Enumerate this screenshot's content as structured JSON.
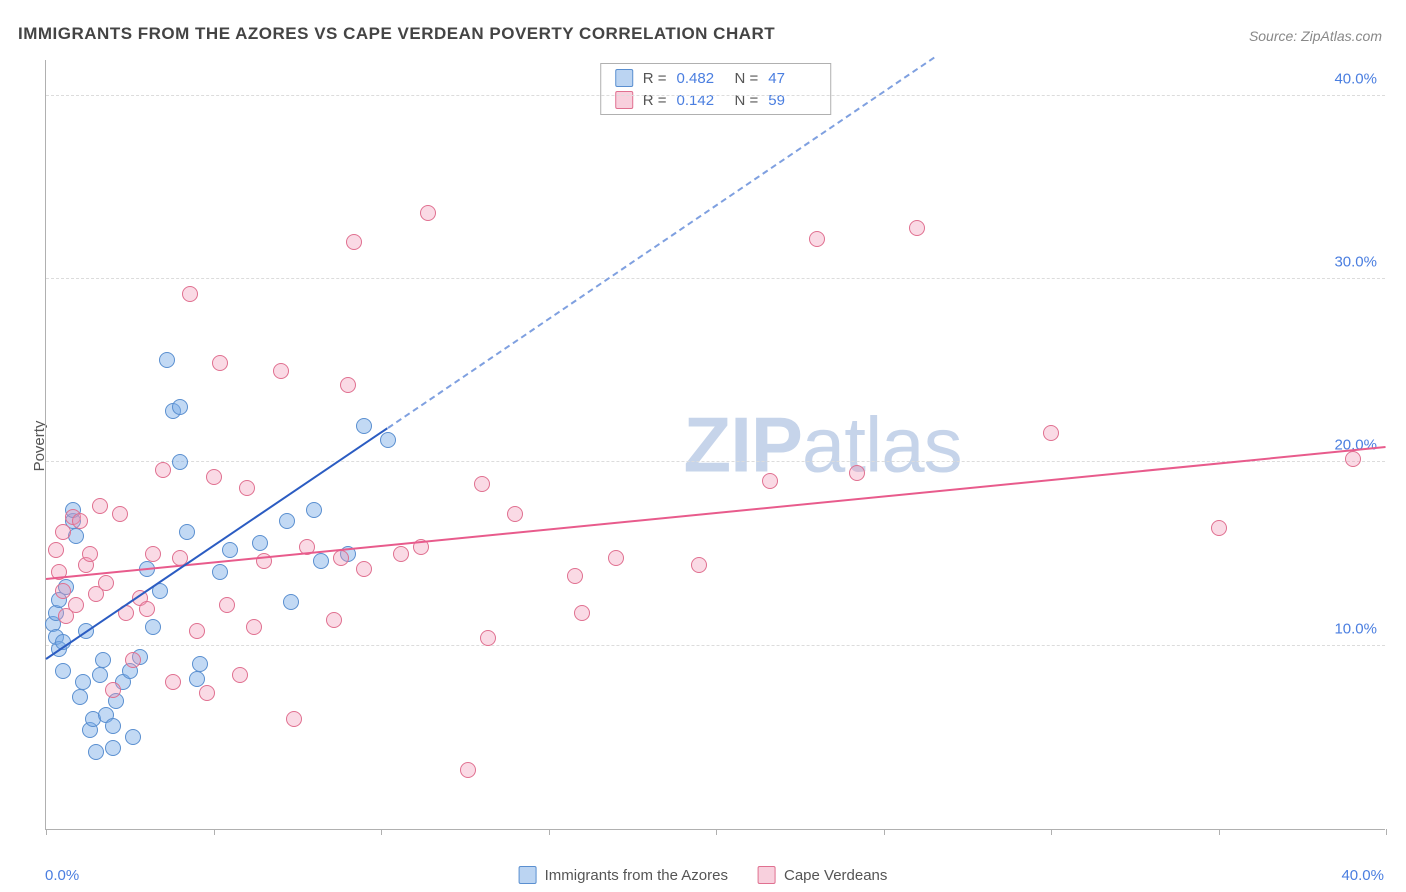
{
  "title": "IMMIGRANTS FROM THE AZORES VS CAPE VERDEAN POVERTY CORRELATION CHART",
  "source": "Source: ZipAtlas.com",
  "watermark_bold": "ZIP",
  "watermark_light": "atlas",
  "axis_y_title": "Poverty",
  "chart": {
    "type": "scatter",
    "xlim": [
      0,
      40
    ],
    "ylim": [
      0,
      42
    ],
    "x_ticks": [
      0,
      5,
      10,
      15,
      20,
      25,
      30,
      35,
      40
    ],
    "y_gridlines": [
      10,
      20,
      30,
      40
    ],
    "x_labels": [
      {
        "val": 0,
        "text": "0.0%"
      },
      {
        "val": 40,
        "text": "40.0%"
      }
    ],
    "y_labels": [
      {
        "val": 10,
        "text": "10.0%"
      },
      {
        "val": 20,
        "text": "20.0%"
      },
      {
        "val": 30,
        "text": "30.0%"
      },
      {
        "val": 40,
        "text": "40.0%"
      }
    ],
    "background_color": "#ffffff",
    "grid_color": "#dcdcdc",
    "axis_color": "#b0b0b0",
    "label_color": "#4a7ee0",
    "label_fontsize": 15,
    "title_fontsize": 17,
    "marker_radius": 8,
    "series": [
      {
        "name": "Immigrants from the Azores",
        "color_fill": "rgba(120,170,230,0.45)",
        "color_stroke": "#5a8fd0",
        "R": "0.482",
        "N": "47",
        "trend": {
          "x1": 0,
          "y1": 9.2,
          "x2": 10.2,
          "y2": 21.8,
          "color": "#2b5cc2",
          "width": 2.5,
          "style": "solid"
        },
        "trend_ext": {
          "x1": 10.2,
          "y1": 21.8,
          "x2": 26.5,
          "y2": 42,
          "color": "#7fa0e0",
          "width": 2,
          "style": "dashed"
        },
        "points": [
          [
            0.2,
            11.2
          ],
          [
            0.3,
            10.5
          ],
          [
            0.3,
            11.8
          ],
          [
            0.4,
            9.8
          ],
          [
            0.4,
            12.5
          ],
          [
            0.5,
            10.2
          ],
          [
            0.5,
            8.6
          ],
          [
            0.6,
            13.2
          ],
          [
            0.8,
            16.8
          ],
          [
            0.8,
            17.4
          ],
          [
            0.9,
            16.0
          ],
          [
            1.0,
            7.2
          ],
          [
            1.1,
            8.0
          ],
          [
            1.2,
            10.8
          ],
          [
            1.3,
            5.4
          ],
          [
            1.4,
            6.0
          ],
          [
            1.5,
            4.2
          ],
          [
            1.6,
            8.4
          ],
          [
            1.7,
            9.2
          ],
          [
            1.8,
            6.2
          ],
          [
            2.0,
            5.6
          ],
          [
            2.0,
            4.4
          ],
          [
            2.1,
            7.0
          ],
          [
            2.3,
            8.0
          ],
          [
            2.5,
            8.6
          ],
          [
            2.6,
            5.0
          ],
          [
            2.8,
            9.4
          ],
          [
            3.0,
            14.2
          ],
          [
            3.2,
            11.0
          ],
          [
            3.4,
            13.0
          ],
          [
            3.6,
            25.6
          ],
          [
            3.8,
            22.8
          ],
          [
            4.0,
            20.0
          ],
          [
            4.0,
            23.0
          ],
          [
            4.2,
            16.2
          ],
          [
            4.5,
            8.2
          ],
          [
            4.6,
            9.0
          ],
          [
            5.2,
            14.0
          ],
          [
            5.5,
            15.2
          ],
          [
            6.4,
            15.6
          ],
          [
            7.2,
            16.8
          ],
          [
            7.3,
            12.4
          ],
          [
            8.2,
            14.6
          ],
          [
            8.0,
            17.4
          ],
          [
            9.0,
            15.0
          ],
          [
            9.5,
            22.0
          ],
          [
            10.2,
            21.2
          ]
        ]
      },
      {
        "name": "Cape Verdeans",
        "color_fill": "rgba(240,150,180,0.35)",
        "color_stroke": "#e07090",
        "R": "0.142",
        "N": "59",
        "trend": {
          "x1": 0,
          "y1": 13.6,
          "x2": 40,
          "y2": 20.8,
          "color": "#e85b8c",
          "width": 2.5,
          "style": "solid"
        },
        "points": [
          [
            0.3,
            15.2
          ],
          [
            0.4,
            14.0
          ],
          [
            0.5,
            13.0
          ],
          [
            0.5,
            16.2
          ],
          [
            0.6,
            11.6
          ],
          [
            0.8,
            17.0
          ],
          [
            0.9,
            12.2
          ],
          [
            1.0,
            16.8
          ],
          [
            1.2,
            14.4
          ],
          [
            1.3,
            15.0
          ],
          [
            1.5,
            12.8
          ],
          [
            1.6,
            17.6
          ],
          [
            1.8,
            13.4
          ],
          [
            2.0,
            7.6
          ],
          [
            2.2,
            17.2
          ],
          [
            2.4,
            11.8
          ],
          [
            2.6,
            9.2
          ],
          [
            2.8,
            12.6
          ],
          [
            3.0,
            12.0
          ],
          [
            3.2,
            15.0
          ],
          [
            3.5,
            19.6
          ],
          [
            3.8,
            8.0
          ],
          [
            4.0,
            14.8
          ],
          [
            4.3,
            29.2
          ],
          [
            4.5,
            10.8
          ],
          [
            4.8,
            7.4
          ],
          [
            5.0,
            19.2
          ],
          [
            5.2,
            25.4
          ],
          [
            5.4,
            12.2
          ],
          [
            5.8,
            8.4
          ],
          [
            6.0,
            18.6
          ],
          [
            6.2,
            11.0
          ],
          [
            6.5,
            14.6
          ],
          [
            7.0,
            25.0
          ],
          [
            7.4,
            6.0
          ],
          [
            7.8,
            15.4
          ],
          [
            8.6,
            11.4
          ],
          [
            8.8,
            14.8
          ],
          [
            9.0,
            24.2
          ],
          [
            9.2,
            32.0
          ],
          [
            9.5,
            14.2
          ],
          [
            10.6,
            15.0
          ],
          [
            11.2,
            15.4
          ],
          [
            11.4,
            33.6
          ],
          [
            12.6,
            3.2
          ],
          [
            13.0,
            18.8
          ],
          [
            13.2,
            10.4
          ],
          [
            14.0,
            17.2
          ],
          [
            15.8,
            13.8
          ],
          [
            16.0,
            11.8
          ],
          [
            17.0,
            14.8
          ],
          [
            19.5,
            14.4
          ],
          [
            21.6,
            19.0
          ],
          [
            23.0,
            32.2
          ],
          [
            24.2,
            19.4
          ],
          [
            26.0,
            32.8
          ],
          [
            30.0,
            21.6
          ],
          [
            35.0,
            16.4
          ],
          [
            39.0,
            20.2
          ]
        ]
      }
    ]
  },
  "bottom_legend": [
    {
      "swatch": "blue",
      "label": "Immigrants from the Azores"
    },
    {
      "swatch": "pink",
      "label": "Cape Verdeans"
    }
  ]
}
